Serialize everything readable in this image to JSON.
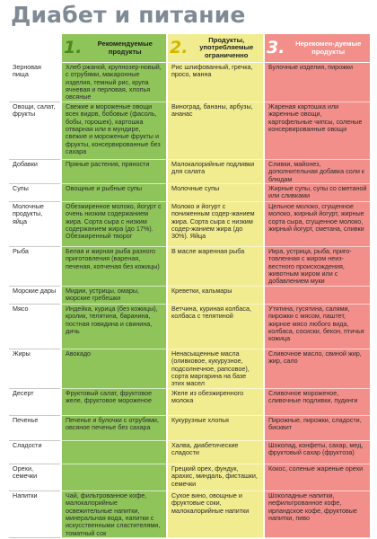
{
  "title": "Диабет и питание",
  "headers": [
    {
      "num": "1.",
      "label": "Рекомендуемые продукты"
    },
    {
      "num": "2.",
      "label": "Продукты, употребляемые ограниченно"
    },
    {
      "num": "3.",
      "label": "Нерекомен-дуемые продукты"
    }
  ],
  "rows": [
    {
      "category": "Зерновая пища",
      "rec": "Хлеб ржаной, крупнозер-новый, с отрубями, макаронные изделия, темный рис, крупа ячневая и перловая, хлопья овсяные",
      "lim": "Рис шлифованный, гречка, просо, манна",
      "bad": "Булочные изделия, пирожки"
    },
    {
      "category": "Овощи, салат, фрукты",
      "rec": "Свежие и мороженые овощи всех видов, бобовые (фасоль, бобы, горошек), картошка отварная или в мундире, свежие и мороженые фрукты и фрукты, консервированные без сахара",
      "lim": "Виноград, бананы, арбузы, ананас",
      "bad": "Жареная картошка или жаренные овощи, картофельные чипсы, соленые консервированные овощи"
    },
    {
      "category": "Добавки",
      "rec": "Пряные растения, пряности",
      "lim": "Малокалорийные подливки для салата",
      "bad": "Сливки, майонез, дополнительная добавка соли к блюдам"
    },
    {
      "category": "Супы",
      "rec": "Овощные и рыбные супы",
      "lim": "Молочные супы",
      "bad": "Жирные супы, супы со сметаной или сливками"
    },
    {
      "category": "Молочные продукты, яйца",
      "rec": "Обезжиренное молоко, йогурт с очень низким содержанием жира. Сорта сыра с низким содержанием жира (до 17%). Обезжиренный творог",
      "lim": "Молоко и йогурт с пониженным содер-жанием жира. Сорта сыра с низким содер-жанием жира (до 30%). Яйца",
      "bad": "Цельное молоко, сгущенное молоко, жирный йогурт, жирные сорта сыра, сгущенное молоко, жирный йогурт, сметана, сливки"
    },
    {
      "category": "Рыба",
      "rec": "Белая и жирная рыба разного приготовления (вареная, печеная, копченая без кожицы)",
      "lim": "В масле жаренная рыба",
      "bad": "Икра, устрица, рыба, приго-товленная с жиром неиз-вестного происхождения, животным жиром или с добавлением муки"
    },
    {
      "category": "Морские дары",
      "rec": "Мидии, устрицы, омары, морские гребешки",
      "lim": "Креветки, кальмары",
      "bad": ""
    },
    {
      "category": "Мясо",
      "rec": "Индейка, курица (без кожицы), кролик, телятина, баранина, постная говядина и свинина, дичь",
      "lim": "Ветчина, куриная колбаса, колбаса с телятиной",
      "bad": "Утятина, гусятина, салями, пирожки с мясом, паштет, жирное мясо любого вида, колбаса, сосиски, бекон, птичья кожица"
    },
    {
      "category": "Жиры",
      "rec": "Авокадо",
      "lim": "Ненасыщенные масла (оливковое, кукурузное, подсолнечное, рапсовое), сорта маргарина на базе этих масел",
      "bad": "Сливочное масло, свиной жир, жир, сало"
    },
    {
      "category": "Десерт",
      "rec": "Фруктовый салат, фруктовое желе, фруктовое мороженое",
      "lim": "Желе из обезжиренного молока",
      "bad": "Сливочное мороженое, сливочные подливки, пудинги"
    },
    {
      "category": "Печенье",
      "rec": "Печенье и булочки с отрубями, овсяное печенье без сахара",
      "lim": "Кукурузные хлопья",
      "bad": "Пирожные, пирожки, сладости, бисквит"
    },
    {
      "category": "Сладости",
      "rec": "",
      "lim": "Халва, диабетические сладости",
      "bad": "Шоколад, конфеты, сахар, мед, фруктовый сахар (фруктоза)"
    },
    {
      "category": "Орехи, семечки",
      "rec": "",
      "lim": "Грецкий орех, фундук, арахис, миндаль, фисташки, семечки",
      "bad": "Кокос, соленые жареные орехи"
    },
    {
      "category": "Напитки",
      "rec": "Чай, фильтрованное кофе, малокалорийные освежительные напитки, минеральная вода, напитки с искусственными сластителями, томатный сок",
      "lim": "Сухое вино, овощные и фруктовые соки, малокалорийные напитки",
      "bad": "Шоколадные напитки, нефильтрованное кофе, ирландское кофе, фруктовые напитки, пиво"
    }
  ]
}
